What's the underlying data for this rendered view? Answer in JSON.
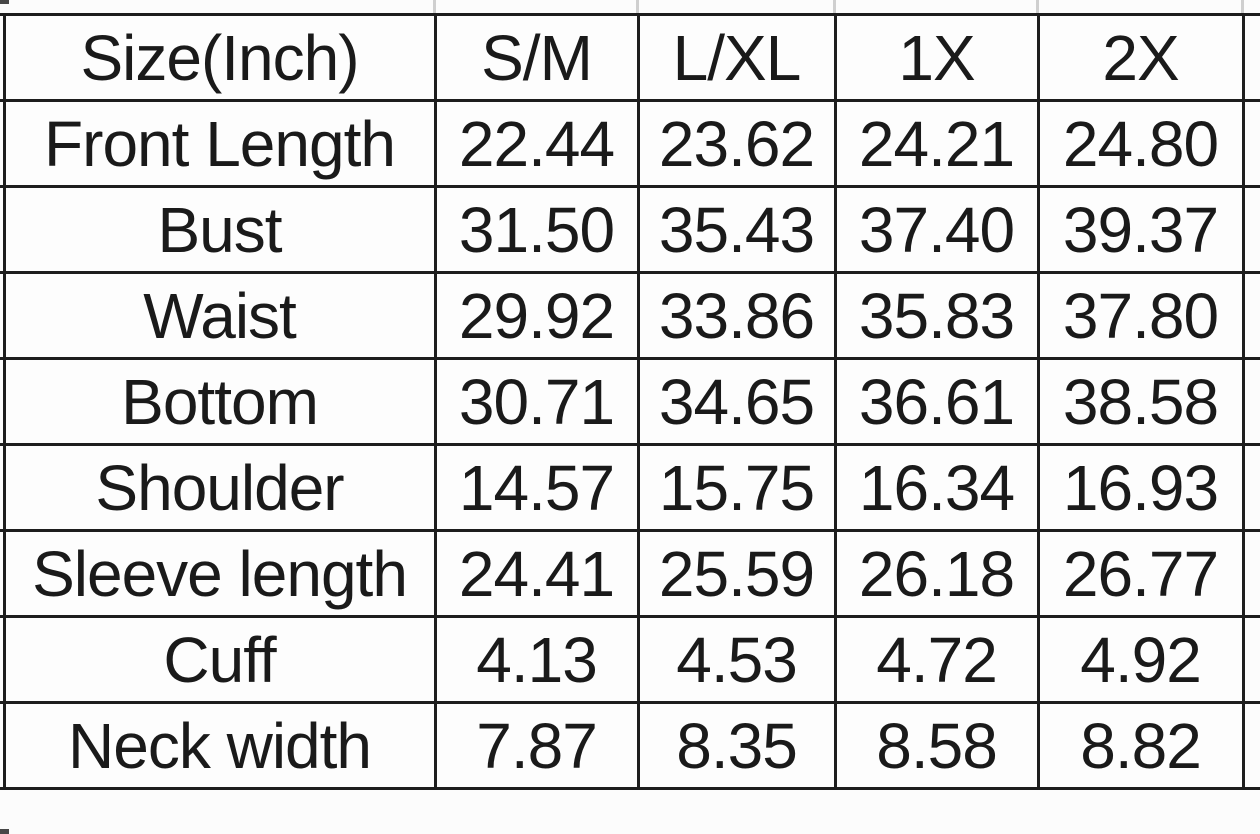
{
  "chart_data": {
    "type": "table",
    "title": "Size(Inch)",
    "columns": [
      "Size(Inch)",
      "S/M",
      "L/XL",
      "1X",
      "2X"
    ],
    "rows": [
      {
        "label": "Front Length",
        "values": [
          "22.44",
          "23.62",
          "24.21",
          "24.80"
        ]
      },
      {
        "label": "Bust",
        "values": [
          "31.50",
          "35.43",
          "37.40",
          "39.37"
        ]
      },
      {
        "label": "Waist",
        "values": [
          "29.92",
          "33.86",
          "35.83",
          "37.80"
        ]
      },
      {
        "label": "Bottom",
        "values": [
          "30.71",
          "34.65",
          "36.61",
          "38.58"
        ]
      },
      {
        "label": "Shoulder",
        "values": [
          "14.57",
          "15.75",
          "16.34",
          "16.93"
        ]
      },
      {
        "label": "Sleeve length",
        "values": [
          "24.41",
          "25.59",
          "26.18",
          "26.77"
        ]
      },
      {
        "label": "Cuff",
        "values": [
          "4.13",
          "4.53",
          "4.72",
          "4.92"
        ]
      },
      {
        "label": "Neck width",
        "values": [
          "7.87",
          "8.35",
          "8.58",
          "8.82"
        ]
      }
    ],
    "layout": {
      "grid": "on",
      "unit": "inches"
    },
    "colors": {
      "grid_line": "#1d1d1d",
      "text": "#1a1a1a",
      "cell_background": "#fdfdfd",
      "page_background": "#fcfcfc",
      "scan_tick": "#cfcfcf"
    }
  }
}
